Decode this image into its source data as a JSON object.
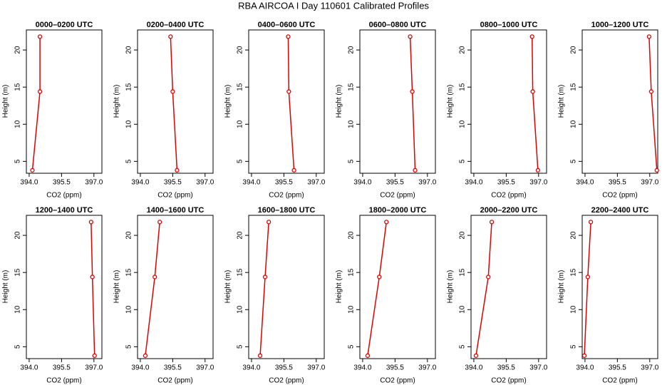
{
  "title": "RBA AIRCOA I  Day 110601  Calibrated Profiles",
  "chart_data": [
    {
      "type": "line",
      "title": "0000–0200 UTC",
      "x_label": "CO2 (ppm)",
      "y_label": "Height (m)",
      "color": "#e00000",
      "x": [
        394.5,
        394.5,
        394.15
      ],
      "y": [
        21.8,
        14.4,
        3.8
      ],
      "xlim": [
        393.87,
        397.37
      ],
      "ylim": [
        3.4,
        22.7
      ],
      "xticks": [
        {
          "value": 394,
          "label": "394.0"
        },
        395.5,
        {
          "value": 397,
          "label": "397.0"
        }
      ],
      "yticks": [
        5,
        10,
        15,
        20
      ]
    },
    {
      "type": "line",
      "title": "0200–0400 UTC",
      "x_label": "CO2 (ppm)",
      "y_label": "Height (m)",
      "color": "#e00000",
      "x": [
        395.4,
        395.5,
        395.7
      ],
      "y": [
        21.8,
        14.4,
        3.8
      ],
      "xlim": [
        393.87,
        397.37
      ],
      "ylim": [
        3.4,
        22.7
      ],
      "xticks": [
        {
          "value": 394,
          "label": "394.0"
        },
        395.5,
        {
          "value": 397,
          "label": "397.0"
        }
      ],
      "yticks": [
        5,
        10,
        15,
        20
      ]
    },
    {
      "type": "line",
      "title": "0400–0600 UTC",
      "x_label": "CO2 (ppm)",
      "y_label": "Height (m)",
      "color": "#e00000",
      "x": [
        395.7,
        395.73,
        395.97
      ],
      "y": [
        21.8,
        14.4,
        3.8
      ],
      "xlim": [
        393.87,
        397.37
      ],
      "ylim": [
        3.4,
        22.7
      ],
      "xticks": [
        {
          "value": 394,
          "label": "394.0"
        },
        395.5,
        {
          "value": 397,
          "label": "397.0"
        }
      ],
      "yticks": [
        5,
        10,
        15,
        20
      ]
    },
    {
      "type": "line",
      "title": "0600–0800 UTC",
      "x_label": "CO2 (ppm)",
      "y_label": "Height (m)",
      "color": "#e00000",
      "x": [
        396.2,
        396.3,
        396.43
      ],
      "y": [
        21.8,
        14.4,
        3.8
      ],
      "xlim": [
        393.87,
        397.37
      ],
      "ylim": [
        3.4,
        22.7
      ],
      "xticks": [
        {
          "value": 394,
          "label": "394.0"
        },
        395.5,
        {
          "value": 397,
          "label": "397.0"
        }
      ],
      "yticks": [
        5,
        10,
        15,
        20
      ]
    },
    {
      "type": "line",
      "title": "0800–1000 UTC",
      "x_label": "CO2 (ppm)",
      "y_label": "Height (m)",
      "color": "#e00000",
      "x": [
        396.7,
        396.73,
        396.97
      ],
      "y": [
        21.8,
        14.4,
        3.8
      ],
      "xlim": [
        393.87,
        397.37
      ],
      "ylim": [
        3.4,
        22.7
      ],
      "xticks": [
        {
          "value": 394,
          "label": "394.0"
        },
        395.5,
        {
          "value": 397,
          "label": "397.0"
        }
      ],
      "yticks": [
        5,
        10,
        15,
        20
      ]
    },
    {
      "type": "line",
      "title": "1000–1200 UTC",
      "x_label": "CO2 (ppm)",
      "y_label": "Height (m)",
      "color": "#e00000",
      "x": [
        396.97,
        397.07,
        397.33
      ],
      "y": [
        21.8,
        14.4,
        3.8
      ],
      "xlim": [
        393.87,
        397.37
      ],
      "ylim": [
        3.4,
        22.7
      ],
      "xticks": [
        {
          "value": 394,
          "label": "394.0"
        },
        395.5,
        {
          "value": 397,
          "label": "397.0"
        }
      ],
      "yticks": [
        5,
        10,
        15,
        20
      ]
    },
    {
      "type": "line",
      "title": "1200–1400 UTC",
      "x_label": "CO2 (ppm)",
      "y_label": "Height (m)",
      "color": "#e00000",
      "x": [
        396.87,
        396.93,
        397.03
      ],
      "y": [
        21.8,
        14.4,
        3.8
      ],
      "xlim": [
        393.87,
        397.37
      ],
      "ylim": [
        3.4,
        22.7
      ],
      "xticks": [
        {
          "value": 394,
          "label": "394.0"
        },
        395.5,
        {
          "value": 397,
          "label": "397.0"
        }
      ],
      "yticks": [
        5,
        10,
        15,
        20
      ]
    },
    {
      "type": "line",
      "title": "1400–1600 UTC",
      "x_label": "CO2 (ppm)",
      "y_label": "Height (m)",
      "color": "#e00000",
      "x": [
        394.9,
        394.67,
        394.23
      ],
      "y": [
        21.8,
        14.4,
        3.8
      ],
      "xlim": [
        393.87,
        397.37
      ],
      "ylim": [
        3.4,
        22.7
      ],
      "xticks": [
        {
          "value": 394,
          "label": "394.0"
        },
        395.5,
        {
          "value": 397,
          "label": "397.0"
        }
      ],
      "yticks": [
        5,
        10,
        15,
        20
      ]
    },
    {
      "type": "line",
      "title": "1600–1800 UTC",
      "x_label": "CO2 (ppm)",
      "y_label": "Height (m)",
      "color": "#e00000",
      "x": [
        394.8,
        394.63,
        394.4
      ],
      "y": [
        21.8,
        14.4,
        3.8
      ],
      "xlim": [
        393.87,
        397.37
      ],
      "ylim": [
        3.4,
        22.7
      ],
      "xticks": [
        {
          "value": 394,
          "label": "394.0"
        },
        395.5,
        {
          "value": 397,
          "label": "397.0"
        }
      ],
      "yticks": [
        5,
        10,
        15,
        20
      ]
    },
    {
      "type": "line",
      "title": "1800–2000 UTC",
      "x_label": "CO2 (ppm)",
      "y_label": "Height (m)",
      "color": "#e00000",
      "x": [
        395.1,
        394.77,
        394.23
      ],
      "y": [
        21.8,
        14.4,
        3.8
      ],
      "xlim": [
        393.87,
        397.37
      ],
      "ylim": [
        3.4,
        22.7
      ],
      "xticks": [
        {
          "value": 394,
          "label": "394.0"
        },
        395.5,
        {
          "value": 397,
          "label": "397.0"
        }
      ],
      "yticks": [
        5,
        10,
        15,
        20
      ]
    },
    {
      "type": "line",
      "title": "2000–2200 UTC",
      "x_label": "CO2 (ppm)",
      "y_label": "Height (m)",
      "color": "#e00000",
      "x": [
        394.83,
        394.67,
        394.1
      ],
      "y": [
        21.8,
        14.4,
        3.8
      ],
      "xlim": [
        393.87,
        397.37
      ],
      "ylim": [
        3.4,
        22.7
      ],
      "xticks": [
        {
          "value": 394,
          "label": "394.0"
        },
        395.5,
        {
          "value": 397,
          "label": "397.0"
        }
      ],
      "yticks": [
        5,
        10,
        15,
        20
      ]
    },
    {
      "type": "line",
      "title": "2200–2400 UTC",
      "x_label": "CO2 (ppm)",
      "y_label": "Height (m)",
      "color": "#e00000",
      "x": [
        394.27,
        394.13,
        393.97
      ],
      "y": [
        21.8,
        14.4,
        3.8
      ],
      "xlim": [
        393.87,
        397.37
      ],
      "ylim": [
        3.4,
        22.7
      ],
      "xticks": [
        {
          "value": 394,
          "label": "394.0"
        },
        395.5,
        {
          "value": 397,
          "label": "397.0"
        }
      ],
      "yticks": [
        5,
        10,
        15,
        20
      ]
    }
  ]
}
